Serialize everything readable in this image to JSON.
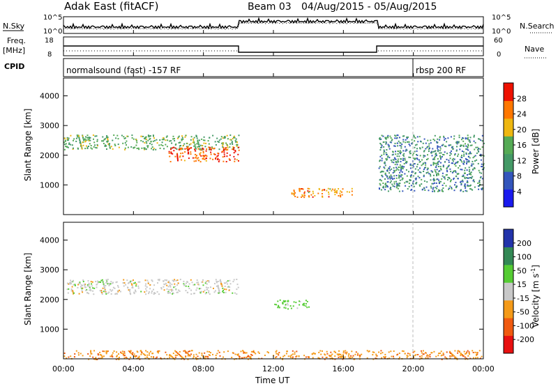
{
  "header": {
    "station": "Adak East (fitACF)",
    "beam": "Beam 03",
    "date_range": "04/Aug/2015 - 05/Aug/2015"
  },
  "top_panels": {
    "nsky_label": "N.Sky",
    "nsearch_label": "N.Search",
    "noise_ticks": [
      "10^5",
      "10^0"
    ],
    "freq_label": "Freq.",
    "freq_unit": "[MHz]",
    "freq_ticks": [
      "18",
      "8"
    ],
    "nave_label": "Nave",
    "nave_ticks": [
      "60",
      "0"
    ],
    "cpid_label": "CPID",
    "cpid_segments": [
      {
        "label": "normalsound (fast) -157 RF",
        "start_hour": 0,
        "end_hour": 20.0
      },
      {
        "label": "rbsp 200 RF",
        "start_hour": 20.0,
        "end_hour": 24
      }
    ]
  },
  "x_axis": {
    "label": "Time UT",
    "ticks": [
      "00:00",
      "04:00",
      "08:00",
      "12:00",
      "16:00",
      "20:00",
      "00:00"
    ]
  },
  "colors": {
    "power": [
      "#1a1aee",
      "#3355bb",
      "#449966",
      "#55aa55",
      "#eeb711",
      "#ff7700",
      "#ee1100"
    ],
    "velocity": [
      "#e81010",
      "#f05a10",
      "#f49a18",
      "#c8c8c8",
      "#55cc33",
      "#338855",
      "#2233aa"
    ]
  },
  "chart_data": [
    {
      "type": "heatmap",
      "title": "Power",
      "ylabel": "Slant Range [km]",
      "yticks": [
        "1000",
        "2000",
        "3000",
        "4000"
      ],
      "ylim": [
        0,
        4600
      ],
      "xlim": [
        0,
        24
      ],
      "colorbar": {
        "label": "Power [dB]",
        "ticks": [
          "4",
          "8",
          "12",
          "16",
          "20",
          "24",
          "28"
        ],
        "range": [
          0,
          30
        ]
      },
      "features": [
        {
          "name": "F-region echo band",
          "start_hour": 0,
          "end_hour": 10,
          "range_km": [
            2200,
            2700
          ],
          "power_db": 14
        },
        {
          "name": "intense pre-midnight echoes",
          "start_hour": 6,
          "end_hour": 10,
          "range_km": [
            1800,
            2300
          ],
          "power_db": 26
        },
        {
          "name": "post-12UT echo patch",
          "start_hour": 13,
          "end_hour": 16.5,
          "range_km": [
            600,
            900
          ],
          "power_db": 22
        },
        {
          "name": "late-day echoes",
          "start_hour": 18,
          "end_hour": 24,
          "range_km": [
            800,
            2700
          ],
          "power_db": 10
        }
      ]
    },
    {
      "type": "heatmap",
      "title": "Velocity",
      "ylabel": "Slant Range [km]",
      "yticks": [
        "1000",
        "2000",
        "3000",
        "4000"
      ],
      "ylim": [
        0,
        4600
      ],
      "xlim": [
        0,
        24
      ],
      "colorbar": {
        "label": "Velocity [m s^-1]",
        "ticks": [
          "-200",
          "-100",
          "-50",
          "-15",
          "15",
          "50",
          "100",
          "200"
        ],
        "range": [
          -250,
          250
        ]
      },
      "features": [
        {
          "name": "near-zero velocity band",
          "start_hour": 0,
          "end_hour": 10,
          "range_km": [
            2200,
            2700
          ],
          "velocity_ms": 0
        },
        {
          "name": "positive velocity patch",
          "start_hour": 12,
          "end_hour": 14,
          "range_km": [
            1700,
            2000
          ],
          "velocity_ms": 30
        },
        {
          "name": "ground scatter near range 0",
          "start_hour": 0,
          "end_hour": 24,
          "range_km": [
            0,
            300
          ],
          "velocity_ms": -40
        }
      ]
    }
  ]
}
